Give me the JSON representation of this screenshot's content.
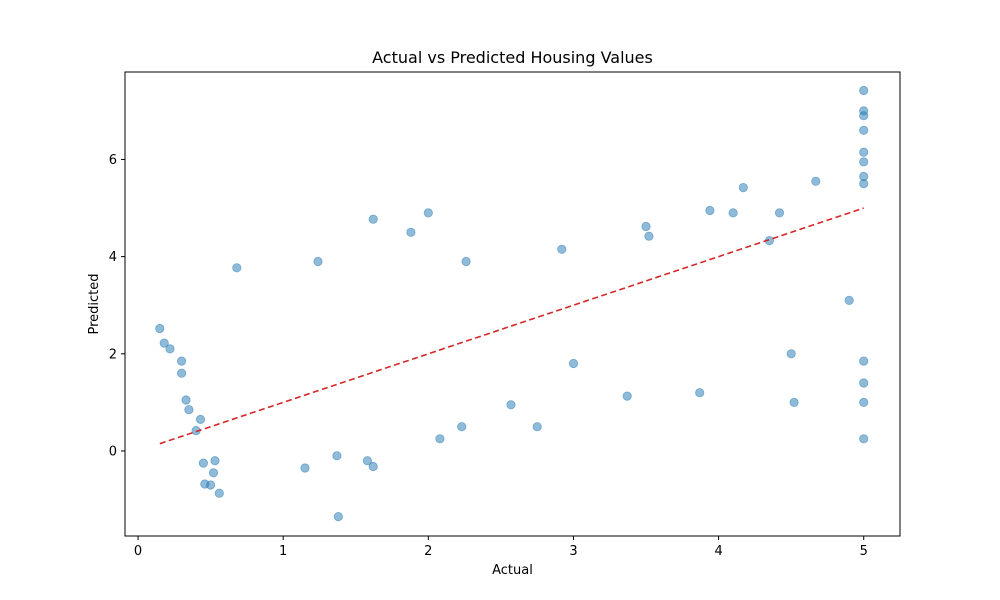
{
  "chart_data": {
    "type": "scatter",
    "title": "Actual vs Predicted Housing Values",
    "xlabel": "Actual",
    "ylabel": "Predicted",
    "xlim": [
      -0.09,
      5.25
    ],
    "ylim": [
      -1.75,
      7.8
    ],
    "x_ticks": [
      0,
      1,
      2,
      3,
      4,
      5
    ],
    "y_ticks": [
      0,
      2,
      4,
      6
    ],
    "grid": false,
    "legend": "none",
    "colors": {
      "points": "#1f77b4",
      "reference_line": "#d62728"
    },
    "point_alpha": 0.5,
    "reference_line": {
      "style": "dashed",
      "x": [
        0.15,
        5.0
      ],
      "y": [
        0.15,
        5.0
      ]
    },
    "series": [
      {
        "points": [
          [
            0.15,
            2.52
          ],
          [
            0.18,
            2.22
          ],
          [
            0.22,
            2.1
          ],
          [
            0.3,
            1.85
          ],
          [
            0.3,
            1.6
          ],
          [
            0.33,
            1.05
          ],
          [
            0.35,
            0.85
          ],
          [
            0.4,
            0.42
          ],
          [
            0.43,
            0.65
          ],
          [
            0.45,
            -0.25
          ],
          [
            0.46,
            -0.68
          ],
          [
            0.5,
            -0.7
          ],
          [
            0.52,
            -0.45
          ],
          [
            0.53,
            -0.2
          ],
          [
            0.56,
            -0.87
          ],
          [
            0.68,
            3.77
          ],
          [
            1.24,
            3.9
          ],
          [
            1.38,
            -1.35
          ],
          [
            1.62,
            4.77
          ],
          [
            1.88,
            4.5
          ],
          [
            2.0,
            4.9
          ],
          [
            2.26,
            3.9
          ],
          [
            2.75,
            0.5
          ],
          [
            2.92,
            4.15
          ],
          [
            3.37,
            1.13
          ],
          [
            3.5,
            4.62
          ],
          [
            3.52,
            4.42
          ],
          [
            3.94,
            4.95
          ],
          [
            4.1,
            4.9
          ],
          [
            4.17,
            5.42
          ],
          [
            4.42,
            4.9
          ],
          [
            4.67,
            5.55
          ],
          [
            4.52,
            1.0
          ],
          [
            3.87,
            1.2
          ],
          [
            3.0,
            1.8
          ],
          [
            2.57,
            0.95
          ],
          [
            2.23,
            0.5
          ],
          [
            2.08,
            0.25
          ],
          [
            1.62,
            -0.32
          ],
          [
            1.58,
            -0.2
          ],
          [
            1.15,
            -0.35
          ],
          [
            1.37,
            -0.1
          ],
          [
            4.35,
            4.33
          ],
          [
            4.5,
            2.0
          ],
          [
            4.9,
            3.1
          ],
          [
            5.0,
            0.25
          ],
          [
            5.0,
            1.0
          ],
          [
            5.0,
            1.4
          ],
          [
            5.0,
            1.85
          ],
          [
            5.0,
            7.42
          ],
          [
            5.0,
            7.0
          ],
          [
            5.0,
            6.9
          ],
          [
            5.0,
            6.6
          ],
          [
            5.0,
            6.15
          ],
          [
            5.0,
            5.95
          ],
          [
            5.0,
            5.65
          ],
          [
            5.0,
            5.5
          ]
        ]
      }
    ]
  }
}
